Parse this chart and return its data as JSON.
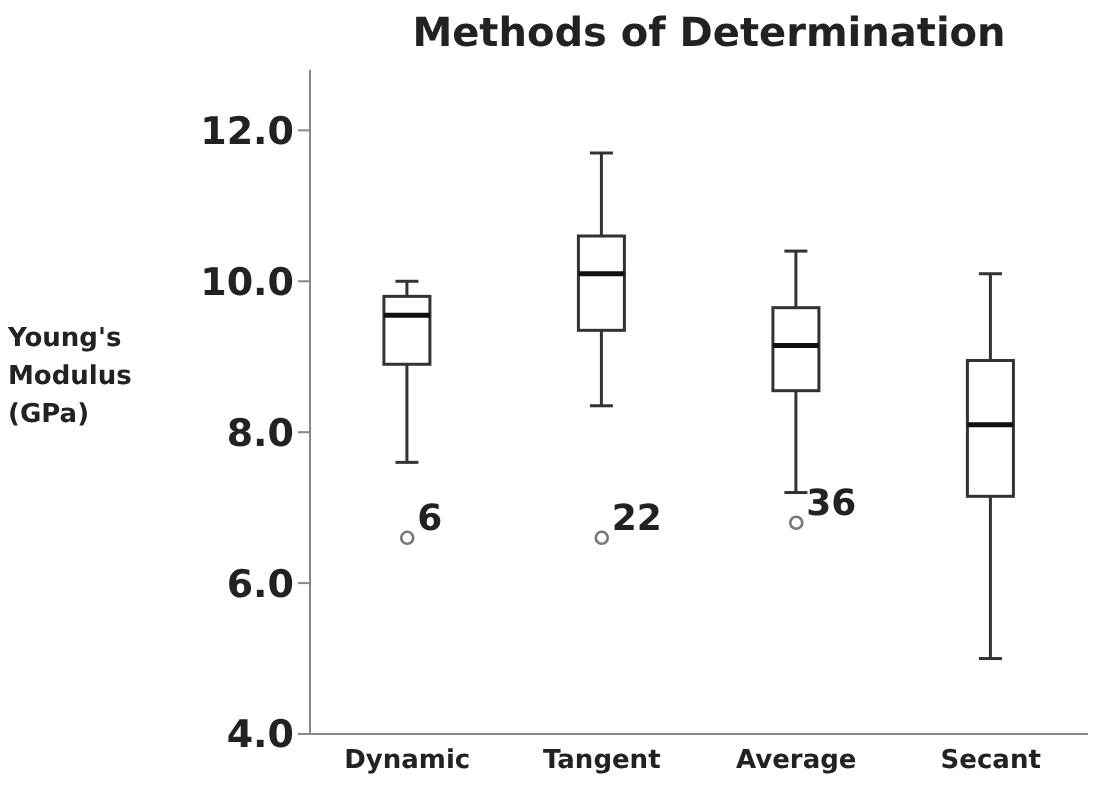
{
  "chart_data": {
    "type": "box",
    "title": "Methods of Determination",
    "ylabel": "Young's Modulus (GPa)",
    "categories": [
      "Dynamic",
      "Tangent",
      "Average",
      "Secant"
    ],
    "boxes": [
      {
        "low": 7.6,
        "q1": 8.9,
        "median": 9.55,
        "q3": 9.8,
        "high": 10.0,
        "outliers": [
          6.6
        ]
      },
      {
        "low": 8.35,
        "q1": 9.35,
        "median": 10.1,
        "q3": 10.6,
        "high": 11.7,
        "outliers": [
          6.6
        ]
      },
      {
        "low": 7.2,
        "q1": 8.55,
        "median": 9.15,
        "q3": 9.65,
        "high": 10.4,
        "outliers": [
          6.8
        ]
      },
      {
        "low": 5.0,
        "q1": 7.15,
        "median": 8.1,
        "q3": 8.95,
        "high": 10.1
      }
    ],
    "color": "#ffffff",
    "ylim": [
      4,
      12.8
    ],
    "yticks": [
      {
        "value": 4,
        "label": "4.0"
      },
      {
        "value": 6,
        "label": "6.0"
      },
      {
        "value": 8,
        "label": "8.0"
      },
      {
        "value": 10,
        "label": "10.0"
      },
      {
        "value": 12,
        "label": "12.0"
      }
    ],
    "annotations": [
      "6",
      "22",
      "36"
    ]
  }
}
